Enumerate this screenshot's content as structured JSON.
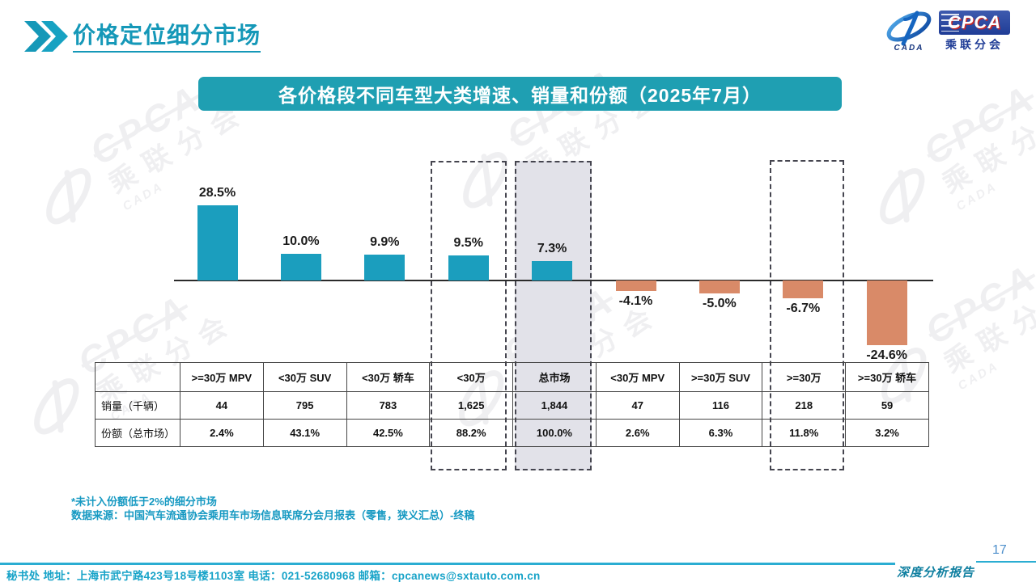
{
  "slide": {
    "title": "价格定位细分市场",
    "banner": "各价格段不同车型大类增速、销量和份额（2025年7月）",
    "page_number": "17",
    "report_label": "深度分析报告"
  },
  "logo": {
    "cpca": "CPCA",
    "sub": "乘联分会",
    "cada": "CADA"
  },
  "watermark": {
    "cpca": "CPCA",
    "sub": "乘联分会",
    "cada": "CADA"
  },
  "chart_data": {
    "type": "bar",
    "title": "各价格段不同车型大类增速、销量和份额（2025年7月）",
    "categories": [
      ">=30万 MPV",
      "<30万 SUV",
      "<30万 轿车",
      "<30万",
      "总市场",
      "<30万 MPV",
      ">=30万 SUV",
      ">=30万",
      ">=30万 轿车"
    ],
    "values": [
      28.5,
      10.0,
      9.9,
      9.5,
      7.3,
      -4.1,
      -5.0,
      -6.7,
      -24.6
    ],
    "value_format": "percent_1dp",
    "xlabel": "",
    "ylabel": "",
    "ylim": [
      -30,
      35
    ],
    "grid": false,
    "legend": false,
    "data_labels": "on_bars",
    "positive_color": "#1B9EBE",
    "negative_color": "#D98A68",
    "highlight_dashed_categories": [
      "<30万",
      ">=30万"
    ],
    "highlight_shaded_categories": [
      "总市场"
    ]
  },
  "table": {
    "corner": "",
    "columns": [
      ">=30万 MPV",
      "<30万 SUV",
      "<30万 轿车",
      "<30万",
      "总市场",
      "<30万 MPV",
      ">=30万 SUV",
      ">=30万",
      ">=30万 轿车"
    ],
    "rows": [
      {
        "label": "销量（千辆）",
        "cells": [
          "44",
          "795",
          "783",
          "1,625",
          "1,844",
          "47",
          "116",
          "218",
          "59"
        ]
      },
      {
        "label": "份额（总市场）",
        "cells": [
          "2.4%",
          "43.1%",
          "42.5%",
          "88.2%",
          "100.0%",
          "2.6%",
          "6.3%",
          "11.8%",
          "3.2%"
        ]
      }
    ]
  },
  "notes": {
    "footnote": "*未计入份额低于2%的细分市场",
    "source": "数据来源：中国汽车流通协会乘用车市场信息联席分会月报表（零售，狭义汇总）-终稿"
  },
  "footer": {
    "secretariat": "秘书处  地址：上海市武宁路423号18号楼1103室  电话：021-52680968   邮箱：cpcanews@sxtauto.com.cn"
  },
  "colors": {
    "teal_bar": "#1B9EBE",
    "salmon_bar": "#D98A68",
    "banner_teal": "#1F9FB2",
    "accent_text_teal": "#1598B8",
    "shaded_column": "#E2E2E9"
  }
}
